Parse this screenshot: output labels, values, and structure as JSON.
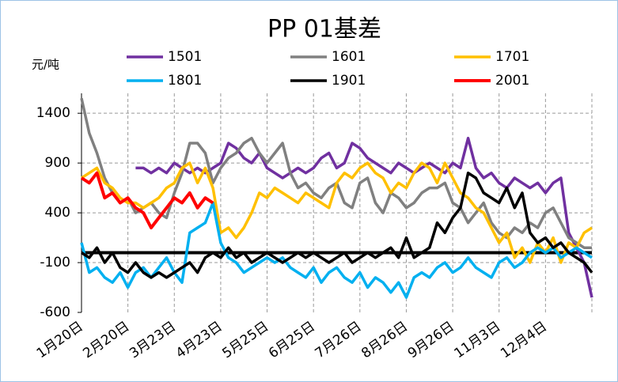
{
  "chart_data": {
    "type": "line",
    "title": "PP 01基差",
    "y_label": "元/吨",
    "categories": [
      "1月20日",
      null,
      null,
      null,
      null,
      null,
      "2月20日",
      null,
      null,
      null,
      null,
      null,
      "3月23日",
      null,
      null,
      null,
      null,
      null,
      "4月23日",
      null,
      null,
      null,
      null,
      null,
      "5月25日",
      null,
      null,
      null,
      null,
      null,
      "6月25日",
      null,
      null,
      null,
      null,
      null,
      "7月26日",
      null,
      null,
      null,
      null,
      null,
      "8月26日",
      null,
      null,
      null,
      null,
      null,
      "9月26日",
      null,
      null,
      null,
      null,
      null,
      "11月3日",
      null,
      null,
      null,
      null,
      null,
      "12月4日",
      null,
      null,
      null,
      null,
      null,
      null
    ],
    "ylim": [
      -600,
      1600
    ],
    "yticks": [
      -600,
      -100,
      400,
      900,
      1400
    ],
    "grid": true,
    "hline": 0,
    "series": [
      {
        "name": "1501",
        "color": "#7030a0",
        "values": [
          null,
          null,
          null,
          null,
          null,
          null,
          null,
          850,
          850,
          800,
          850,
          800,
          900,
          850,
          800,
          850,
          800,
          850,
          900,
          1100,
          1050,
          950,
          900,
          1000,
          850,
          800,
          750,
          800,
          850,
          800,
          850,
          950,
          1000,
          850,
          900,
          1100,
          1050,
          950,
          900,
          850,
          800,
          900,
          850,
          800,
          850,
          900,
          850,
          800,
          900,
          850,
          1150,
          850,
          750,
          800,
          700,
          650,
          750,
          700,
          650,
          700,
          600,
          700,
          750,
          200,
          50,
          -100,
          -450
        ]
      },
      {
        "name": "1601",
        "color": "#808080",
        "values": [
          1550,
          1200,
          1000,
          750,
          600,
          500,
          550,
          400,
          450,
          500,
          400,
          350,
          600,
          800,
          1100,
          1100,
          1000,
          700,
          850,
          950,
          1000,
          1100,
          1150,
          1000,
          900,
          1000,
          1100,
          800,
          650,
          700,
          600,
          550,
          650,
          700,
          500,
          450,
          700,
          750,
          500,
          400,
          600,
          550,
          450,
          500,
          600,
          650,
          650,
          700,
          500,
          450,
          300,
          400,
          500,
          300,
          200,
          150,
          250,
          200,
          300,
          250,
          400,
          450,
          300,
          150,
          100,
          50,
          50
        ]
      },
      {
        "name": "1701",
        "color": "#ffc000",
        "values": [
          750,
          800,
          850,
          700,
          650,
          550,
          500,
          500,
          450,
          500,
          550,
          650,
          700,
          850,
          900,
          700,
          850,
          650,
          200,
          250,
          150,
          250,
          400,
          600,
          550,
          650,
          600,
          550,
          500,
          600,
          550,
          500,
          450,
          700,
          800,
          750,
          850,
          900,
          800,
          750,
          600,
          700,
          650,
          800,
          900,
          850,
          700,
          900,
          750,
          600,
          550,
          450,
          400,
          250,
          100,
          200,
          -50,
          50,
          -100,
          100,
          0,
          150,
          -100,
          100,
          50,
          200,
          250
        ]
      },
      {
        "name": "1801",
        "color": "#00b0f0",
        "values": [
          100,
          -200,
          -150,
          -250,
          -300,
          -200,
          -350,
          -200,
          -150,
          -250,
          -150,
          -50,
          -200,
          -300,
          200,
          250,
          300,
          500,
          100,
          -50,
          -100,
          -200,
          -150,
          -100,
          -50,
          -100,
          -50,
          -150,
          -200,
          -250,
          -150,
          -300,
          -200,
          -150,
          -250,
          -300,
          -200,
          -350,
          -250,
          -300,
          -400,
          -300,
          -450,
          -250,
          -200,
          -250,
          -150,
          -100,
          -200,
          -150,
          -50,
          -150,
          -200,
          -250,
          -100,
          -50,
          -150,
          -100,
          0,
          50,
          0,
          50,
          -50,
          0,
          50,
          0,
          -50
        ]
      },
      {
        "name": "1901",
        "color": "#000000",
        "values": [
          0,
          -50,
          50,
          -100,
          0,
          -150,
          -200,
          -100,
          -200,
          -250,
          -200,
          -250,
          -200,
          -150,
          -100,
          -200,
          -50,
          0,
          -50,
          50,
          -50,
          0,
          -100,
          -50,
          0,
          -50,
          -100,
          -50,
          0,
          -50,
          0,
          -50,
          -100,
          -50,
          0,
          -100,
          -50,
          0,
          -50,
          0,
          50,
          -50,
          150,
          -50,
          0,
          50,
          300,
          200,
          350,
          450,
          800,
          750,
          600,
          550,
          500,
          650,
          450,
          600,
          200,
          100,
          150,
          50,
          100,
          0,
          -50,
          -100,
          -200
        ]
      },
      {
        "name": "2001",
        "color": "#ff0000",
        "values": [
          750,
          700,
          800,
          550,
          600,
          500,
          550,
          450,
          400,
          250,
          350,
          450,
          550,
          500,
          600,
          450,
          550,
          500,
          null,
          null,
          null,
          null,
          null,
          null,
          null,
          null,
          null,
          null,
          null,
          null,
          null,
          null,
          null,
          null,
          null,
          null,
          null,
          null,
          null,
          null,
          null,
          null,
          null,
          null,
          null,
          null,
          null,
          null,
          null,
          null,
          null,
          null,
          null,
          null,
          null,
          null,
          null,
          null,
          null,
          null,
          null,
          null,
          null,
          null,
          null,
          null,
          null
        ]
      }
    ]
  }
}
